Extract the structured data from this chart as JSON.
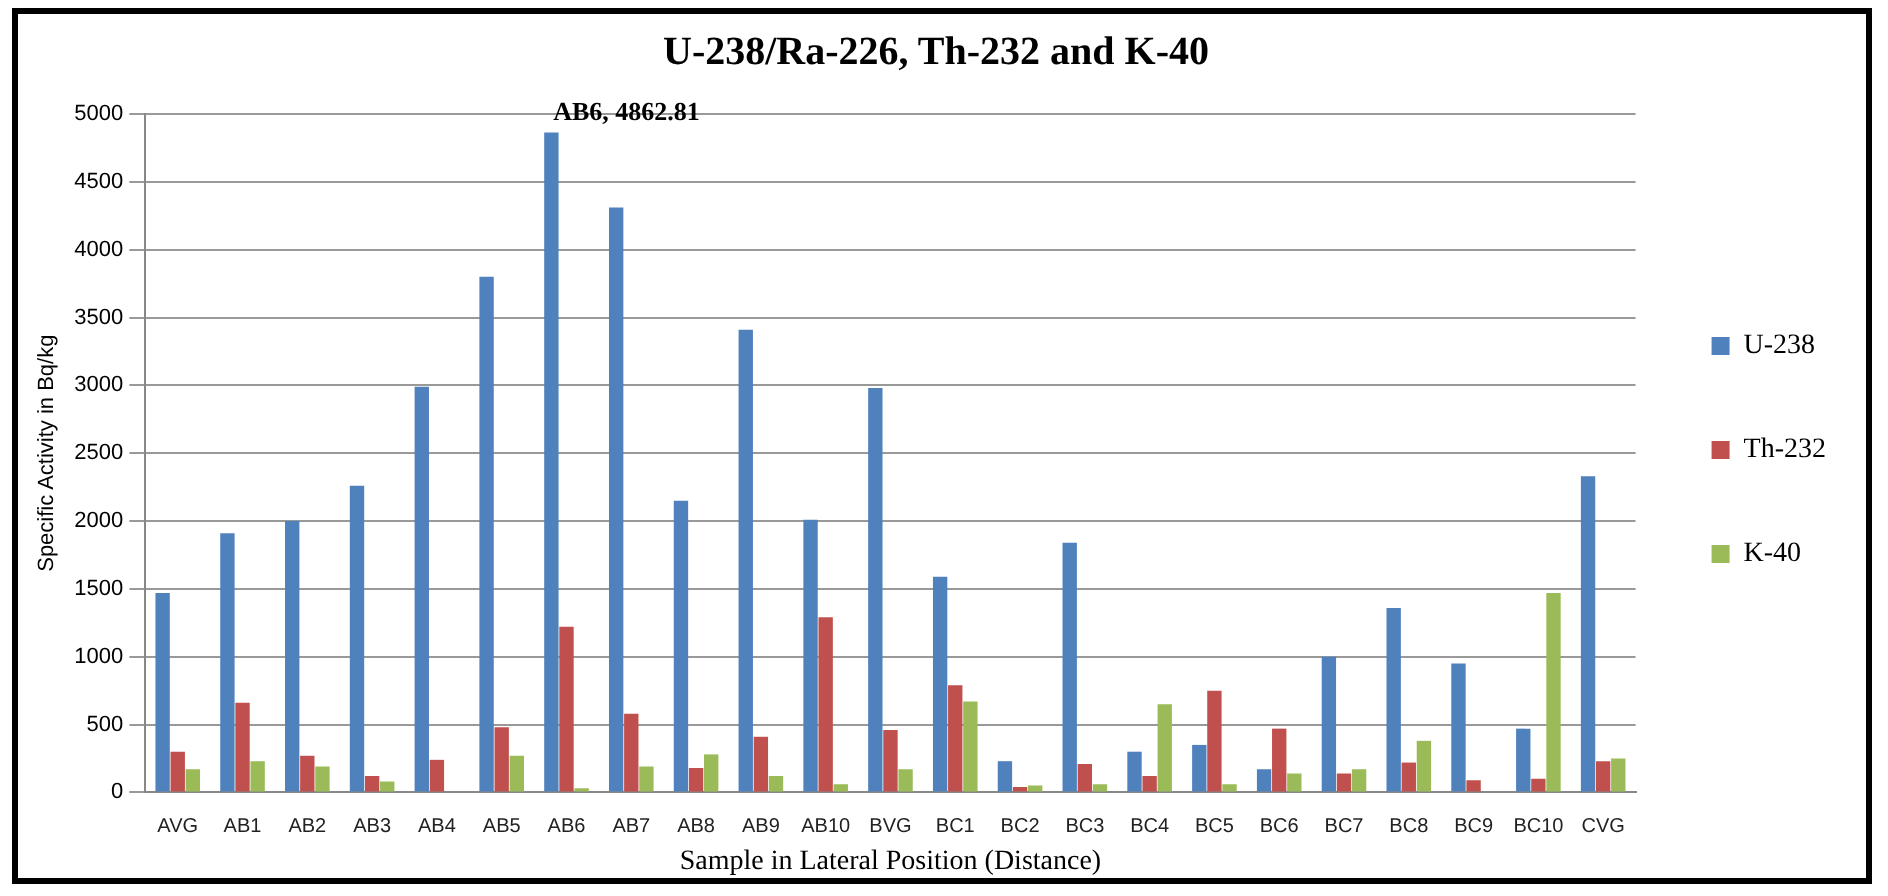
{
  "chart_data": {
    "type": "bar",
    "title": "U-238/Ra-226, Th-232 and K-40",
    "xlabel": "Sample in Lateral Position (Distance)",
    "ylabel": "Specific Activity in Bq/kg",
    "categories": [
      "AVG",
      "AB1",
      "AB2",
      "AB3",
      "AB4",
      "AB5",
      "AB6",
      "AB7",
      "AB8",
      "AB9",
      "AB10",
      "BVG",
      "BC1",
      "BC2",
      "BC3",
      "BC4",
      "BC5",
      "BC6",
      "BC7",
      "BC8",
      "BC9",
      "BC10",
      "CVG"
    ],
    "series": [
      {
        "name": "U-238",
        "color": "#4f81bd",
        "values": [
          1470,
          1910,
          2000,
          2260,
          2990,
          3800,
          4862.81,
          4310,
          2150,
          3410,
          2010,
          2980,
          1590,
          230,
          1840,
          300,
          350,
          170,
          1000,
          1360,
          950,
          470,
          2330
        ]
      },
      {
        "name": "Th-232",
        "color": "#c0504d",
        "values": [
          300,
          660,
          270,
          120,
          240,
          480,
          1220,
          580,
          180,
          410,
          1290,
          460,
          790,
          40,
          210,
          120,
          750,
          470,
          140,
          220,
          90,
          100,
          230
        ]
      },
      {
        "name": "K-40",
        "color": "#9bbb59",
        "values": [
          170,
          230,
          190,
          80,
          0,
          270,
          30,
          190,
          280,
          120,
          60,
          170,
          670,
          50,
          60,
          650,
          60,
          140,
          170,
          380,
          null,
          1470,
          250
        ]
      }
    ],
    "ylim": [
      0,
      5000
    ],
    "yticks": [
      0,
      500,
      1000,
      1500,
      2000,
      2500,
      3000,
      3500,
      4000,
      4500,
      5000
    ],
    "grid": "y",
    "legend": "right",
    "annotations": [
      {
        "text": "AB6, 4862.81",
        "x": "AB6",
        "y": 4862.81
      }
    ]
  }
}
